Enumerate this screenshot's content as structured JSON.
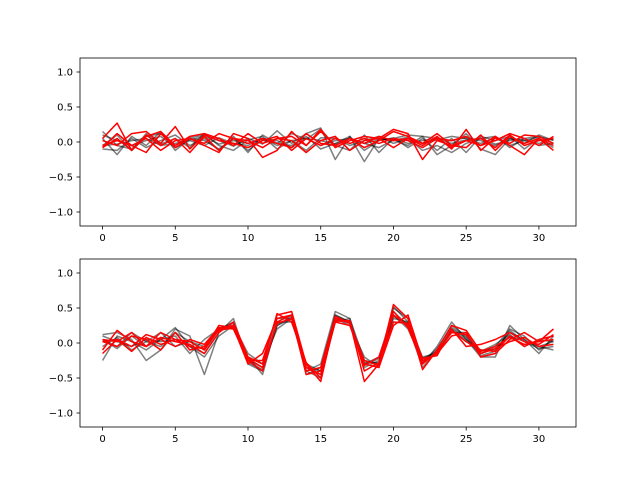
{
  "chart_data": [
    {
      "type": "line",
      "title": "",
      "xlabel": "",
      "ylabel": "",
      "xlim": [
        -1.55,
        32.55
      ],
      "ylim": [
        -1.2,
        1.2
      ],
      "xticks": [
        0,
        5,
        10,
        15,
        20,
        25,
        30
      ],
      "yticks": [
        -1.0,
        -0.5,
        0.0,
        0.5,
        1.0
      ],
      "ytick_labels": [
        "−1.0",
        "−0.5",
        "0.0",
        "0.5",
        "1.0"
      ],
      "grid": false,
      "legend": "none",
      "colors": {
        "gray": "#000000",
        "red": "#ff0000"
      },
      "series": [
        {
          "color": "gray",
          "values": [
            0.15,
            -0.05,
            -0.1,
            0.08,
            0.12,
            -0.05,
            0.06,
            0.1,
            0.02,
            -0.06,
            0.05,
            -0.03,
            0.16,
            -0.02,
            0.12,
            0.2,
            -0.25,
            0.08,
            -0.28,
            0.05,
            0.02,
            0.07,
            -0.02,
            0.03,
            0.08,
            0.05,
            -0.02,
            0.06,
            -0.05,
            0.02,
            0.07,
            0.03
          ]
        },
        {
          "color": "gray",
          "values": [
            0.05,
            -0.18,
            0.08,
            -0.05,
            0.15,
            -0.12,
            0.05,
            0.02,
            -0.1,
            0.05,
            -0.12,
            0.03,
            -0.02,
            0.12,
            0.04,
            0.18,
            -0.05,
            -0.12,
            0.1,
            -0.15,
            0.05,
            0.1,
            0.08,
            -0.18,
            -0.05,
            0.12,
            -0.1,
            -0.18,
            0.05,
            0.02,
            -0.02,
            0.05
          ]
        },
        {
          "color": "gray",
          "values": [
            -0.05,
            0.1,
            -0.12,
            0.12,
            -0.03,
            0.05,
            -0.08,
            0.12,
            -0.05,
            -0.12,
            0.03,
            0.08,
            -0.1,
            0.02,
            -0.12,
            0.06,
            0.05,
            -0.05,
            0.02,
            0.08,
            -0.02,
            0.05,
            -0.12,
            -0.05,
            -0.15,
            -0.02,
            0.05,
            0.08,
            -0.08,
            0.05,
            -0.05,
            -0.02
          ]
        },
        {
          "color": "gray",
          "values": [
            0.1,
            0.02,
            -0.05,
            0.02,
            0.08,
            -0.08,
            0.02,
            -0.05,
            0.06,
            -0.02,
            -0.05,
            0.05,
            0.02,
            -0.08,
            0.05,
            -0.05,
            0.02,
            0.05,
            -0.02,
            -0.08,
            0.03,
            -0.05,
            0.08,
            0.05,
            0.02,
            0.06,
            0.02,
            -0.05,
            0.05,
            -0.02,
            0.1,
            0.02
          ]
        },
        {
          "color": "gray",
          "values": [
            -0.1,
            -0.12,
            0.05,
            -0.08,
            0.02,
            0.1,
            -0.05,
            0.05,
            -0.12,
            0.08,
            -0.15,
            0.1,
            -0.02,
            -0.05,
            0.08,
            -0.1,
            -0.02,
            0.08,
            -0.12,
            0.02,
            0.06,
            -0.08,
            0.05,
            -0.12,
            0.05,
            -0.15,
            0.08,
            0.02,
            0.08,
            -0.1,
            0.05,
            -0.08
          ]
        },
        {
          "color": "gray",
          "values": [
            -0.05,
            -0.03,
            0.02,
            0.05,
            -0.05,
            -0.02,
            0.03,
            0.08,
            -0.03,
            0.02,
            -0.02,
            0.05,
            -0.05,
            0.02,
            0.05,
            0.02,
            -0.03,
            0.05,
            -0.02,
            0.03,
            0.05,
            -0.02,
            0.02,
            0.05,
            -0.02,
            0.03,
            0.05,
            -0.03,
            0.02,
            0.05,
            0.08,
            -0.02
          ]
        },
        {
          "color": "red",
          "values": [
            0.05,
            0.27,
            -0.12,
            0.08,
            0.15,
            -0.05,
            0.08,
            0.12,
            0.05,
            -0.05,
            0.12,
            -0.02,
            0.05,
            0.08,
            -0.05,
            0.15,
            -0.05,
            0.05,
            -0.02,
            0.08,
            0.02,
            0.05,
            -0.05,
            0.08,
            -0.1,
            0.18,
            -0.12,
            0.06,
            -0.02,
            0.1,
            0.08,
            -0.02
          ]
        },
        {
          "color": "red",
          "values": [
            -0.08,
            0.12,
            -0.05,
            -0.15,
            0.12,
            -0.08,
            0.05,
            -0.05,
            -0.15,
            0.12,
            0.05,
            -0.22,
            -0.12,
            0.15,
            -0.05,
            0.18,
            -0.08,
            0.02,
            0.08,
            0.05,
            0.18,
            0.12,
            -0.25,
            0.02,
            -0.05,
            -0.08,
            0.1,
            -0.12,
            0.08,
            -0.02,
            0.05,
            -0.12
          ]
        },
        {
          "color": "red",
          "values": [
            0.02,
            -0.05,
            0.12,
            0.15,
            -0.02,
            0.22,
            -0.1,
            0.1,
            0.02,
            -0.02,
            -0.08,
            0.02,
            0.08,
            -0.12,
            0.05,
            -0.05,
            0.05,
            -0.02,
            0.05,
            -0.02,
            0.05,
            0.02,
            -0.08,
            0.05,
            0.02,
            0.08,
            -0.05,
            0.02,
            0.12,
            0.05,
            -0.05,
            0.08
          ]
        },
        {
          "color": "red",
          "values": [
            -0.05,
            0.02,
            -0.05,
            0.05,
            -0.12,
            0.02,
            0.05,
            -0.02,
            0.12,
            0.05,
            0.02,
            -0.08,
            0.05,
            0.02,
            -0.15,
            0.02,
            0.08,
            -0.12,
            0.02,
            0.05,
            -0.08,
            0.05,
            -0.02,
            0.12,
            -0.05,
            0.02,
            0.05,
            -0.08,
            0.1,
            -0.05,
            0.02,
            0.05
          ]
        },
        {
          "color": "red",
          "values": [
            -0.08,
            0.05,
            -0.12,
            0.1,
            -0.05,
            0.05,
            -0.15,
            0.08,
            -0.12,
            0.05,
            -0.02,
            0.05,
            -0.02,
            -0.08,
            0.12,
            -0.02,
            -0.05,
            0.05,
            -0.08,
            0.02,
            0.15,
            0.08,
            -0.02,
            0.05,
            -0.08,
            0.02,
            -0.05,
            0.08,
            -0.05,
            -0.18,
            0.05,
            -0.05
          ]
        }
      ]
    },
    {
      "type": "line",
      "title": "",
      "xlabel": "",
      "ylabel": "",
      "xlim": [
        -1.55,
        32.55
      ],
      "ylim": [
        -1.2,
        1.2
      ],
      "xticks": [
        0,
        5,
        10,
        15,
        20,
        25,
        30
      ],
      "yticks": [
        -1.0,
        -0.5,
        0.0,
        0.5,
        1.0
      ],
      "ytick_labels": [
        "−1.0",
        "−0.5",
        "0.0",
        "0.5",
        "1.0"
      ],
      "grid": false,
      "legend": "none",
      "colors": {
        "gray": "#000000",
        "red": "#ff0000"
      },
      "series": [
        {
          "color": "gray",
          "values": [
            0.12,
            0.15,
            0.05,
            -0.25,
            -0.1,
            0.2,
            0.1,
            -0.45,
            0.15,
            0.35,
            -0.3,
            -0.4,
            0.3,
            0.4,
            -0.4,
            -0.3,
            0.45,
            0.35,
            -0.25,
            -0.3,
            0.5,
            0.35,
            -0.3,
            -0.05,
            0.3,
            0.05,
            -0.2,
            -0.2,
            0.25,
            0.05,
            -0.15,
            0.1
          ]
        },
        {
          "color": "gray",
          "values": [
            -0.25,
            0.1,
            0.02,
            -0.1,
            0.05,
            0.22,
            -0.05,
            -0.15,
            0.2,
            0.3,
            -0.25,
            -0.35,
            0.25,
            0.35,
            -0.35,
            -0.45,
            0.4,
            0.3,
            -0.3,
            -0.2,
            0.45,
            0.25,
            -0.35,
            -0.1,
            0.25,
            0.1,
            -0.15,
            -0.05,
            0.2,
            0.1,
            -0.1,
            0.05
          ]
        },
        {
          "color": "gray",
          "values": [
            0.05,
            -0.05,
            0.15,
            0.02,
            -0.05,
            0.15,
            0.02,
            -0.1,
            0.25,
            0.2,
            -0.2,
            -0.45,
            0.3,
            0.3,
            -0.3,
            -0.4,
            0.35,
            0.25,
            -0.2,
            -0.35,
            0.4,
            0.2,
            -0.25,
            -0.15,
            0.2,
            0.05,
            -0.1,
            -0.1,
            0.15,
            0.05,
            -0.05,
            -0.1
          ]
        },
        {
          "color": "gray",
          "values": [
            0.1,
            0.02,
            -0.05,
            0.05,
            0.02,
            0.05,
            -0.05,
            -0.2,
            0.1,
            0.25,
            -0.15,
            -0.3,
            0.2,
            0.35,
            -0.4,
            -0.5,
            0.3,
            0.35,
            -0.35,
            -0.25,
            0.35,
            0.3,
            -0.2,
            -0.15,
            0.15,
            0.15,
            -0.15,
            -0.08,
            0.1,
            0.02,
            -0.05,
            0.02
          ]
        },
        {
          "color": "gray",
          "values": [
            -0.05,
            0.08,
            -0.1,
            0.02,
            0.15,
            -0.05,
            0.02,
            -0.05,
            0.2,
            0.28,
            -0.28,
            -0.38,
            0.25,
            0.38,
            -0.45,
            -0.35,
            0.4,
            0.3,
            -0.28,
            -0.28,
            0.52,
            0.3,
            -0.28,
            -0.08,
            0.22,
            0.08,
            -0.18,
            -0.12,
            0.18,
            0.02,
            -0.08,
            -0.05
          ]
        },
        {
          "color": "gray",
          "values": [
            0.05,
            -0.08,
            0.1,
            -0.05,
            0.05,
            0.1,
            -0.15,
            0.05,
            0.2,
            0.25,
            -0.2,
            -0.3,
            0.35,
            0.35,
            -0.35,
            -0.4,
            0.35,
            0.28,
            -0.32,
            -0.22,
            0.38,
            0.28,
            -0.22,
            -0.12,
            0.18,
            0.02,
            -0.12,
            -0.02,
            0.12,
            -0.05,
            0.05,
            0.02
          ]
        },
        {
          "color": "red",
          "values": [
            0.02,
            0.05,
            -0.12,
            0.08,
            -0.02,
            0.05,
            0.02,
            -0.1,
            0.2,
            0.25,
            -0.25,
            -0.25,
            0.4,
            0.45,
            -0.3,
            -0.55,
            0.35,
            0.3,
            -0.55,
            -0.3,
            0.55,
            0.35,
            -0.38,
            -0.1,
            0.25,
            0.18,
            -0.12,
            -0.05,
            0.08,
            -0.02,
            0.02,
            0.2
          ]
        },
        {
          "color": "red",
          "values": [
            -0.1,
            0.18,
            0.02,
            -0.05,
            0.15,
            0.05,
            -0.05,
            -0.08,
            0.25,
            0.22,
            -0.3,
            -0.15,
            0.35,
            0.4,
            -0.35,
            -0.45,
            0.3,
            0.25,
            -0.3,
            -0.35,
            0.25,
            0.4,
            -0.25,
            -0.15,
            0.1,
            0.15,
            -0.2,
            -0.15,
            0.05,
            0.15,
            0.02,
            0.05
          ]
        },
        {
          "color": "red",
          "values": [
            0.05,
            0.02,
            0.15,
            -0.05,
            0.08,
            0.02,
            -0.02,
            -0.15,
            0.15,
            0.3,
            -0.2,
            -0.3,
            0.42,
            0.3,
            -0.28,
            -0.5,
            0.32,
            0.32,
            -0.4,
            -0.28,
            0.3,
            0.28,
            -0.22,
            -0.18,
            0.2,
            -0.05,
            -0.02,
            0.05,
            0.15,
            0.02,
            -0.02,
            0.12
          ]
        },
        {
          "color": "red",
          "values": [
            0.02,
            -0.05,
            0.1,
            0.05,
            -0.1,
            0.15,
            -0.1,
            -0.05,
            0.18,
            0.22,
            -0.22,
            -0.35,
            0.28,
            0.35,
            -0.4,
            -0.35,
            0.38,
            0.28,
            -0.25,
            -0.32,
            0.45,
            0.22,
            -0.3,
            -0.12,
            0.15,
            0.12,
            -0.15,
            -0.08,
            0.02,
            0.08,
            -0.05,
            -0.02
          ]
        },
        {
          "color": "red",
          "values": [
            -0.15,
            0.05,
            -0.05,
            0.12,
            0.05,
            -0.05,
            0.05,
            -0.02,
            0.22,
            0.2,
            -0.25,
            -0.4,
            0.3,
            0.4,
            -0.45,
            -0.4,
            0.32,
            0.3,
            -0.32,
            -0.2,
            0.4,
            0.25,
            -0.28,
            -0.15,
            0.18,
            0.02,
            -0.1,
            -0.12,
            0.1,
            -0.05,
            0.05,
            0.1
          ]
        }
      ]
    }
  ]
}
